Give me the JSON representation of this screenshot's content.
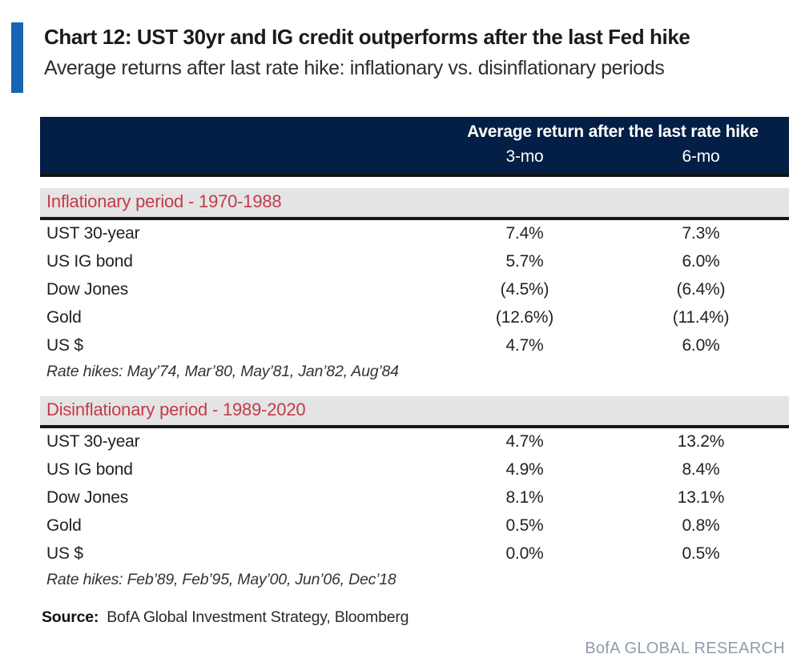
{
  "header": {
    "title": "Chart 12: UST 30yr and IG credit outperforms after the last Fed hike",
    "subtitle": "Average returns after last rate hike: inflationary vs. disinflationary periods"
  },
  "table": {
    "column_group_header": "Average return after the last rate hike",
    "columns": [
      "3-mo",
      "6-mo"
    ],
    "sections": [
      {
        "label": "Inflationary period - 1970-1988",
        "rows": [
          {
            "asset": "UST 30-year",
            "mo3": "7.4%",
            "mo6": "7.3%"
          },
          {
            "asset": "US IG bond",
            "mo3": "5.7%",
            "mo6": "6.0%"
          },
          {
            "asset": "Dow Jones",
            "mo3": "(4.5%)",
            "mo6": "(6.4%)"
          },
          {
            "asset": "Gold",
            "mo3": "(12.6%)",
            "mo6": "(11.4%)"
          },
          {
            "asset": "US $",
            "mo3": "4.7%",
            "mo6": "6.0%"
          }
        ],
        "footnote": "Rate hikes: May’74, Mar’80, May’81, Jan’82, Aug’84"
      },
      {
        "label": "Disinflationary period - 1989-2020",
        "rows": [
          {
            "asset": "UST 30-year",
            "mo3": "4.7%",
            "mo6": "13.2%"
          },
          {
            "asset": "US IG bond",
            "mo3": "4.9%",
            "mo6": "8.4%"
          },
          {
            "asset": "Dow Jones",
            "mo3": "8.1%",
            "mo6": "13.1%"
          },
          {
            "asset": "Gold",
            "mo3": "0.5%",
            "mo6": "0.8%"
          },
          {
            "asset": "US $",
            "mo3": "0.0%",
            "mo6": "0.5%"
          }
        ],
        "footnote": "Rate hikes: Feb’89, Feb’95, May’00, Jun’06, Dec’18"
      }
    ]
  },
  "footer": {
    "source_label": "Source:",
    "source_text": "BofA Global Investment Strategy, Bloomberg",
    "brand": "BofA GLOBAL RESEARCH"
  },
  "colors": {
    "accent_blue": "#1565b3",
    "header_navy": "#041f45",
    "section_red": "#c23b4a",
    "section_gray": "#e4e4e4",
    "positive_green": "#5dba7d",
    "negative_red": "#9c4453",
    "brand_gray_blue": "#8f9cad"
  },
  "chart_data": {
    "type": "table",
    "title": "Chart 12: UST 30yr and IG credit outperforms after the last Fed hike",
    "subtitle": "Average returns after last rate hike: inflationary vs. disinflationary periods",
    "column_group_header": "Average return after the last rate hike",
    "columns": [
      "3-mo",
      "6-mo"
    ],
    "sections": [
      {
        "period": "Inflationary period - 1970-1988",
        "rate_hikes": [
          "May’74",
          "Mar’80",
          "May’81",
          "Jan’82",
          "Aug’84"
        ],
        "rows": [
          {
            "asset": "UST 30-year",
            "return_3mo_pct": 7.4,
            "return_6mo_pct": 7.3
          },
          {
            "asset": "US IG bond",
            "return_3mo_pct": 5.7,
            "return_6mo_pct": 6.0
          },
          {
            "asset": "Dow Jones",
            "return_3mo_pct": -4.5,
            "return_6mo_pct": -6.4
          },
          {
            "asset": "Gold",
            "return_3mo_pct": -12.6,
            "return_6mo_pct": -11.4
          },
          {
            "asset": "US $",
            "return_3mo_pct": 4.7,
            "return_6mo_pct": 6.0
          }
        ]
      },
      {
        "period": "Disinflationary period - 1989-2020",
        "rate_hikes": [
          "Feb’89",
          "Feb’95",
          "May’00",
          "Jun’06",
          "Dec’18"
        ],
        "rows": [
          {
            "asset": "UST 30-year",
            "return_3mo_pct": 4.7,
            "return_6mo_pct": 13.2
          },
          {
            "asset": "US IG bond",
            "return_3mo_pct": 4.9,
            "return_6mo_pct": 8.4
          },
          {
            "asset": "Dow Jones",
            "return_3mo_pct": 8.1,
            "return_6mo_pct": 13.1
          },
          {
            "asset": "Gold",
            "return_3mo_pct": 0.5,
            "return_6mo_pct": 0.8
          },
          {
            "asset": "US $",
            "return_3mo_pct": 0.0,
            "return_6mo_pct": 0.5
          }
        ]
      }
    ]
  }
}
